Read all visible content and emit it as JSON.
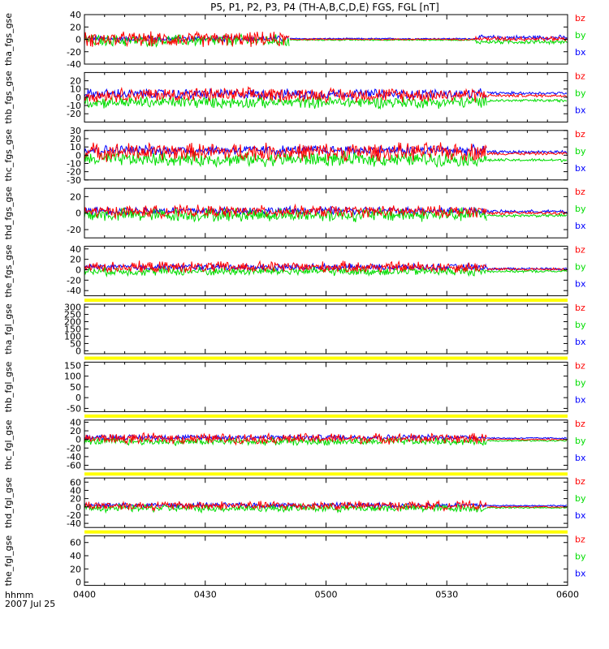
{
  "title": "P5, P1, P2, P3, P4 (TH-A,B,C,D,E) FGS, FGL [nT]",
  "footer": {
    "time_label": "hhmm",
    "date_label": "2007 Jul 25"
  },
  "colors": {
    "bx": "#0000ff",
    "by": "#00dd00",
    "bz": "#ff0000",
    "bar": "#ffff00",
    "black": "#000000"
  },
  "chart_data": {
    "type": "line",
    "title": "P5, P1, P2, P3, P4 (TH-A,B,C,D,E) FGS, FGL [nT]",
    "xlabel": "hhmm",
    "x_range": [
      "0400",
      "0600"
    ],
    "x_ticks": [
      "0400",
      "0430",
      "0500",
      "0530",
      "0600"
    ],
    "legend_entries": [
      "bz",
      "by",
      "bx"
    ],
    "legend_position": "right of each panel",
    "panels": [
      {
        "ylabel": "tha_fgs_gse",
        "ylim": [
          -40,
          40
        ],
        "yticks": [
          40,
          20,
          0,
          -20,
          -40
        ],
        "series": [
          {
            "name": "bx",
            "segments": [
              {
                "start": 0,
                "end": 51,
                "offset": 1,
                "amp": 4
              },
              {
                "start": 51,
                "end": 97,
                "offset": 1,
                "amp": 1
              },
              {
                "start": 97,
                "end": 120,
                "offset": 3,
                "amp": 3
              }
            ]
          },
          {
            "name": "by",
            "segments": [
              {
                "start": 0,
                "end": 51,
                "offset": -2,
                "amp": 8
              },
              {
                "start": 51,
                "end": 97,
                "offset": -1,
                "amp": 1
              },
              {
                "start": 97,
                "end": 120,
                "offset": -4,
                "amp": 3
              }
            ]
          },
          {
            "name": "bz",
            "segments": [
              {
                "start": 0,
                "end": 51,
                "offset": 0,
                "amp": 10
              },
              {
                "start": 51,
                "end": 97,
                "offset": 0,
                "amp": 1
              },
              {
                "start": 97,
                "end": 120,
                "offset": 1,
                "amp": 3
              }
            ]
          }
        ]
      },
      {
        "ylabel": "thb_fgs_gse",
        "ylim": [
          -30,
          30
        ],
        "yticks": [
          20,
          10,
          0,
          -10,
          -20
        ],
        "series": [
          {
            "name": "bx",
            "segments": [
              {
                "start": 0,
                "end": 100,
                "offset": 4,
                "amp": 5
              },
              {
                "start": 100,
                "end": 120,
                "offset": 5,
                "amp": 1.5
              }
            ]
          },
          {
            "name": "by",
            "segments": [
              {
                "start": 0,
                "end": 100,
                "offset": -6,
                "amp": 6
              },
              {
                "start": 100,
                "end": 120,
                "offset": -4,
                "amp": 1.5
              }
            ]
          },
          {
            "name": "bz",
            "segments": [
              {
                "start": 0,
                "end": 100,
                "offset": 3,
                "amp": 7
              },
              {
                "start": 100,
                "end": 120,
                "offset": 2,
                "amp": 1.5
              }
            ]
          }
        ]
      },
      {
        "ylabel": "thc_fgs_gse",
        "ylim": [
          -30,
          30
        ],
        "yticks": [
          30,
          20,
          10,
          0,
          -10,
          -20,
          -30
        ],
        "series": [
          {
            "name": "bx",
            "segments": [
              {
                "start": 0,
                "end": 100,
                "offset": 6,
                "amp": 5
              },
              {
                "start": 100,
                "end": 120,
                "offset": 4,
                "amp": 1.5
              }
            ]
          },
          {
            "name": "by",
            "segments": [
              {
                "start": 0,
                "end": 100,
                "offset": -5,
                "amp": 7
              },
              {
                "start": 100,
                "end": 120,
                "offset": -6,
                "amp": 1.5
              }
            ]
          },
          {
            "name": "bz",
            "segments": [
              {
                "start": 0,
                "end": 100,
                "offset": 4,
                "amp": 9
              },
              {
                "start": 100,
                "end": 120,
                "offset": 2,
                "amp": 1.5
              }
            ]
          }
        ]
      },
      {
        "ylabel": "thd_fgs_gse",
        "ylim": [
          -30,
          30
        ],
        "yticks": [
          20,
          0,
          -20
        ],
        "series": [
          {
            "name": "bx",
            "segments": [
              {
                "start": 0,
                "end": 100,
                "offset": 3,
                "amp": 4
              },
              {
                "start": 100,
                "end": 120,
                "offset": 2,
                "amp": 1.5
              }
            ]
          },
          {
            "name": "by",
            "segments": [
              {
                "start": 0,
                "end": 100,
                "offset": -2,
                "amp": 7
              },
              {
                "start": 100,
                "end": 120,
                "offset": -3,
                "amp": 1.5
              }
            ]
          },
          {
            "name": "bz",
            "segments": [
              {
                "start": 0,
                "end": 100,
                "offset": 2,
                "amp": 6
              },
              {
                "start": 100,
                "end": 120,
                "offset": 0,
                "amp": 1.5
              }
            ]
          }
        ]
      },
      {
        "ylabel": "the_fgs_gse",
        "ylim": [
          -50,
          45
        ],
        "yticks": [
          40,
          20,
          0,
          -20,
          -40
        ],
        "series": [
          {
            "name": "bx",
            "segments": [
              {
                "start": 0,
                "end": 100,
                "offset": 5,
                "amp": 5
              },
              {
                "start": 100,
                "end": 120,
                "offset": 2,
                "amp": 2
              }
            ]
          },
          {
            "name": "by",
            "segments": [
              {
                "start": 0,
                "end": 100,
                "offset": -3,
                "amp": 7
              },
              {
                "start": 100,
                "end": 120,
                "offset": -3,
                "amp": 2
              }
            ]
          },
          {
            "name": "bz",
            "segments": [
              {
                "start": 0,
                "end": 100,
                "offset": 5,
                "amp": 9
              },
              {
                "start": 100,
                "end": 120,
                "offset": 1,
                "amp": 2
              }
            ]
          }
        ]
      },
      {
        "ylabel": "tha_fgl_gse",
        "ylim": [
          -20,
          320
        ],
        "yticks": [
          300,
          250,
          200,
          150,
          100,
          50,
          0
        ],
        "series": []
      },
      {
        "ylabel": "thb_fgl_gse",
        "ylim": [
          -65,
          165
        ],
        "yticks": [
          150,
          100,
          50,
          0,
          -50
        ],
        "series": []
      },
      {
        "ylabel": "thc_fgl_gse",
        "ylim": [
          -70,
          45
        ],
        "yticks": [
          40,
          20,
          0,
          -20,
          -40,
          -60
        ],
        "series": [
          {
            "name": "bx",
            "segments": [
              {
                "start": 0,
                "end": 100,
                "offset": 5,
                "amp": 5
              },
              {
                "start": 100,
                "end": 120,
                "offset": 3,
                "amp": 1.5
              }
            ]
          },
          {
            "name": "by",
            "segments": [
              {
                "start": 0,
                "end": 100,
                "offset": -5,
                "amp": 7
              },
              {
                "start": 100,
                "end": 120,
                "offset": -3,
                "amp": 1.5
              }
            ]
          },
          {
            "name": "bz",
            "segments": [
              {
                "start": 0,
                "end": 100,
                "offset": 2,
                "amp": 10
              },
              {
                "start": 100,
                "end": 120,
                "offset": 0,
                "amp": 1.5
              }
            ]
          }
        ]
      },
      {
        "ylabel": "thd_fgl_gse",
        "ylim": [
          -50,
          70
        ],
        "yticks": [
          60,
          40,
          20,
          0,
          -20,
          -40
        ],
        "series": [
          {
            "name": "bx",
            "segments": [
              {
                "start": 0,
                "end": 100,
                "offset": 4,
                "amp": 5
              },
              {
                "start": 100,
                "end": 120,
                "offset": 3,
                "amp": 1.5
              }
            ]
          },
          {
            "name": "by",
            "segments": [
              {
                "start": 0,
                "end": 100,
                "offset": -3,
                "amp": 8
              },
              {
                "start": 100,
                "end": 120,
                "offset": -2,
                "amp": 1.5
              }
            ]
          },
          {
            "name": "bz",
            "segments": [
              {
                "start": 0,
                "end": 100,
                "offset": 3,
                "amp": 9
              },
              {
                "start": 100,
                "end": 120,
                "offset": 0,
                "amp": 1.5
              }
            ]
          }
        ]
      },
      {
        "ylabel": "the_fgl_gse",
        "ylim": [
          -5,
          70
        ],
        "yticks": [
          60,
          40,
          20,
          0
        ],
        "series": []
      }
    ]
  }
}
